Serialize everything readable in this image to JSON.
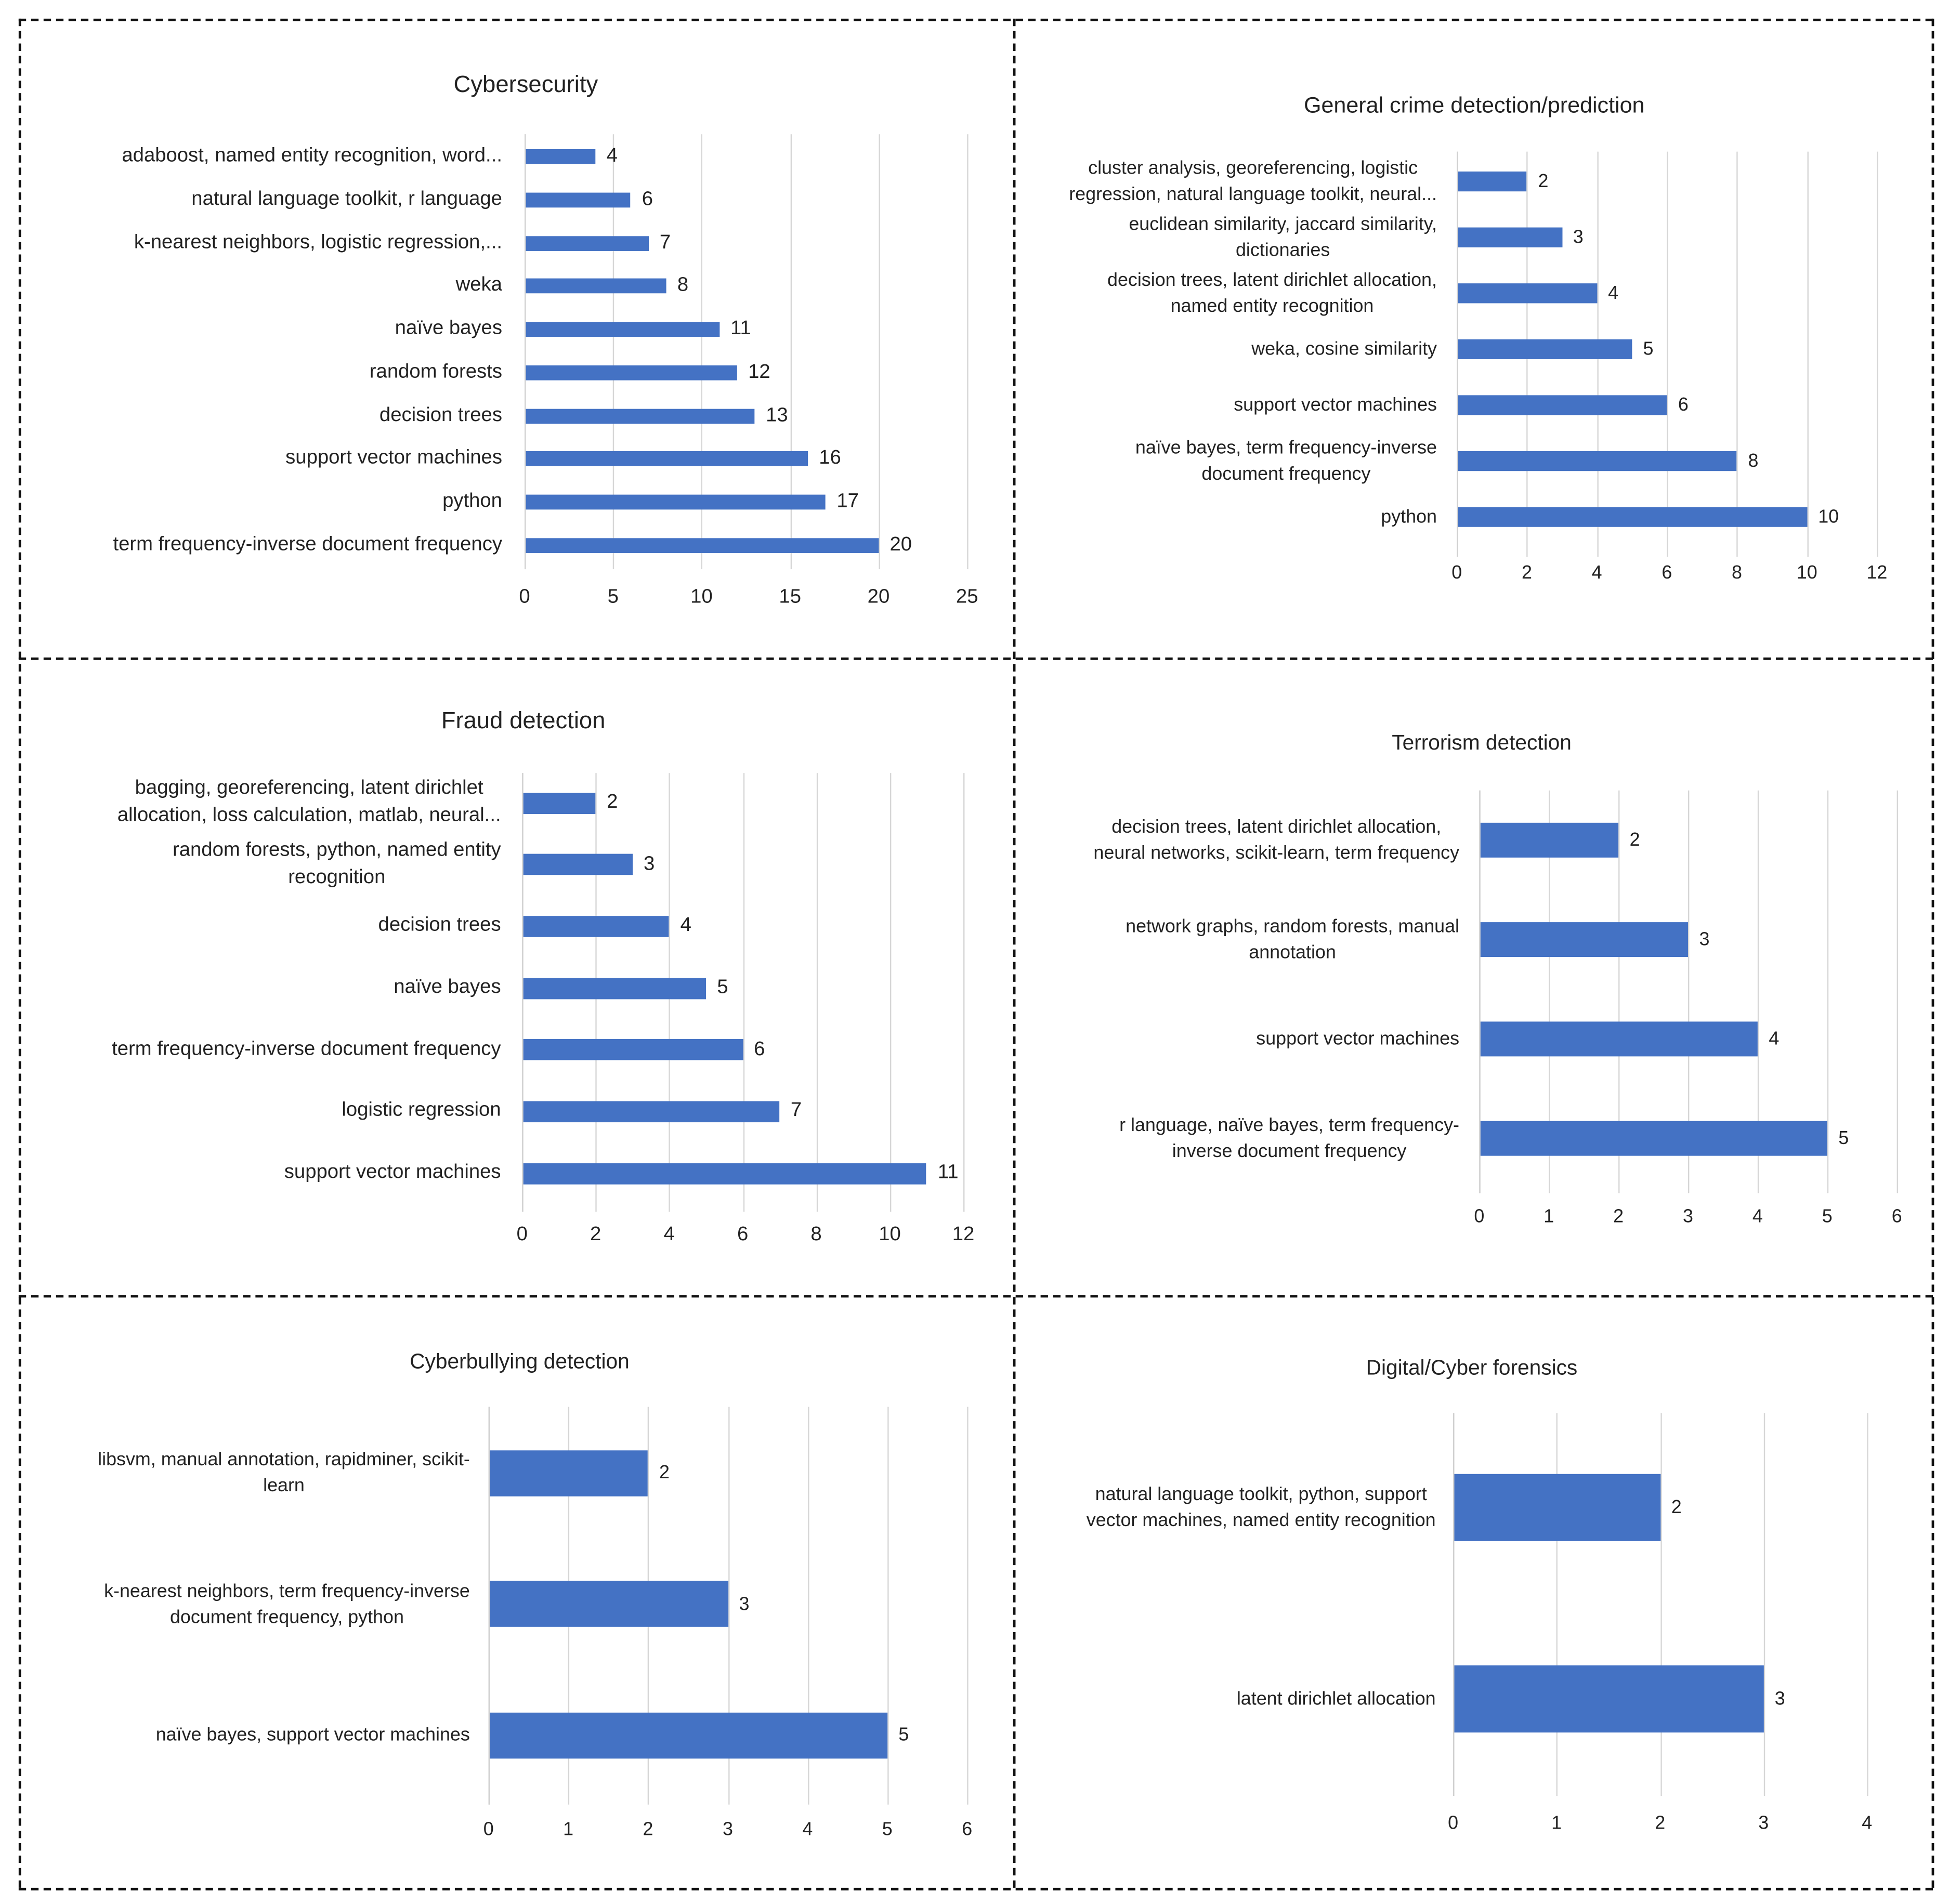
{
  "chart_data": [
    {
      "type": "bar",
      "orientation": "horizontal",
      "title": "Cybersecurity",
      "xlim": [
        0,
        25
      ],
      "ticks": [
        "0",
        "5",
        "10",
        "15",
        "20",
        "25"
      ],
      "grid": true,
      "bar_color": "#4472c4",
      "categories": [
        "adaboost, named entity recognition, word...",
        "natural language toolkit, r language",
        "k-nearest neighbors, logistic regression,...",
        "weka",
        "naïve bayes",
        "random forests",
        "decision trees",
        "support vector machines",
        "python",
        "term frequency-inverse document frequency"
      ],
      "values": [
        4,
        6,
        7,
        8,
        11,
        12,
        13,
        16,
        17,
        20
      ]
    },
    {
      "type": "bar",
      "orientation": "horizontal",
      "title": "General crime detection/prediction",
      "xlim": [
        0,
        12
      ],
      "ticks": [
        "0",
        "2",
        "4",
        "6",
        "8",
        "10",
        "12"
      ],
      "grid": true,
      "bar_color": "#4472c4",
      "categories": [
        "cluster analysis, georeferencing, logistic\nregression, natural language toolkit, neural...",
        "euclidean similarity, jaccard similarity,\ndictionaries",
        "decision trees, latent dirichlet allocation,\nnamed entity recognition",
        "weka, cosine similarity",
        "support vector machines",
        "naïve bayes, term frequency-inverse\ndocument frequency",
        "python"
      ],
      "values": [
        2,
        3,
        4,
        5,
        6,
        8,
        10
      ]
    },
    {
      "type": "bar",
      "orientation": "horizontal",
      "title": "Fraud detection",
      "xlim": [
        0,
        12
      ],
      "ticks": [
        "0",
        "2",
        "4",
        "6",
        "8",
        "10",
        "12"
      ],
      "grid": true,
      "bar_color": "#4472c4",
      "categories": [
        "bagging, georeferencing, latent dirichlet\nallocation, loss calculation, matlab, neural...",
        "random forests, python, named entity\nrecognition",
        "decision trees",
        "naïve bayes",
        "term frequency-inverse document frequency",
        "logistic regression",
        "support vector machines"
      ],
      "values": [
        2,
        3,
        4,
        5,
        6,
        7,
        11
      ]
    },
    {
      "type": "bar",
      "orientation": "horizontal",
      "title": "Terrorism detection",
      "xlim": [
        0,
        6
      ],
      "ticks": [
        "0",
        "1",
        "2",
        "3",
        "4",
        "5",
        "6"
      ],
      "grid": true,
      "bar_color": "#4472c4",
      "categories": [
        "decision trees, latent dirichlet allocation,\nneural networks, scikit-learn, term frequency",
        "network graphs, random forests, manual\nannotation",
        "support vector machines",
        "r language, naïve bayes, term frequency-\ninverse document frequency"
      ],
      "values": [
        2,
        3,
        4,
        5
      ]
    },
    {
      "type": "bar",
      "orientation": "horizontal",
      "title": "Cyberbullying detection",
      "xlim": [
        0,
        6
      ],
      "ticks": [
        "0",
        "1",
        "2",
        "3",
        "4",
        "5",
        "6"
      ],
      "grid": true,
      "bar_color": "#4472c4",
      "categories": [
        "libsvm, manual annotation, rapidminer, scikit-\nlearn",
        "k-nearest neighbors, term frequency-inverse\ndocument frequency, python",
        "naïve bayes, support vector machines"
      ],
      "values": [
        2,
        3,
        5
      ]
    },
    {
      "type": "bar",
      "orientation": "horizontal",
      "title": "Digital/Cyber forensics",
      "xlim": [
        0,
        4
      ],
      "ticks": [
        "0",
        "1",
        "2",
        "3",
        "4"
      ],
      "grid": true,
      "bar_color": "#4472c4",
      "categories": [
        "natural language toolkit, python, support\nvector machines, named entity recognition",
        "latent dirichlet allocation"
      ],
      "values": [
        2,
        3
      ]
    }
  ]
}
